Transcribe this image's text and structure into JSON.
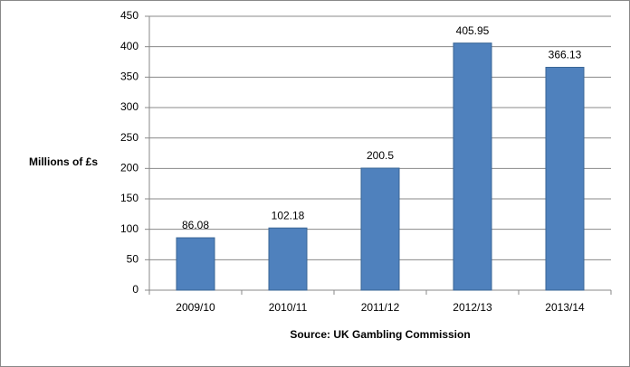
{
  "chart_data": {
    "type": "bar",
    "y_label": "Millions of £s",
    "x_label": "Source: UK Gambling Commission",
    "categories": [
      "2009/10",
      "2010/11",
      "2011/12",
      "2012/13",
      "2013/14"
    ],
    "values": [
      86.08,
      102.18,
      200.5,
      405.95,
      366.13
    ],
    "color": "#4f81bd",
    "ylim": [
      0,
      450
    ],
    "yticks": [
      0,
      50,
      100,
      150,
      200,
      250,
      300,
      350,
      400,
      450
    ],
    "grid": true
  }
}
